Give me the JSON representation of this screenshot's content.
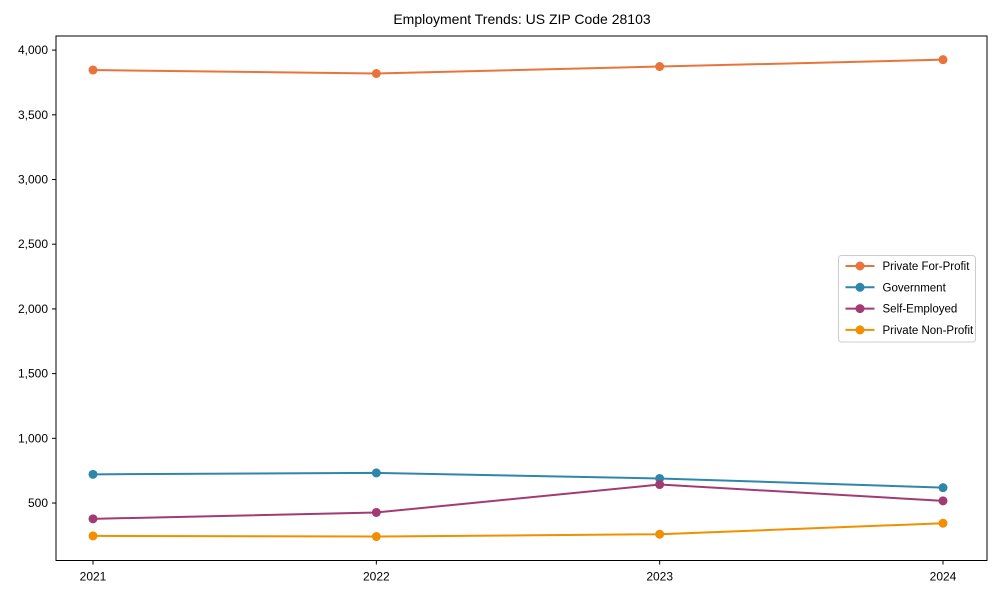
{
  "chart_data": {
    "type": "line",
    "title": "Employment Trends: US ZIP Code 28103",
    "xlabel": "",
    "ylabel": "",
    "categories": [
      "2021",
      "2022",
      "2023",
      "2024"
    ],
    "series": [
      {
        "name": "Private For-Profit",
        "color": "#E8743B",
        "values": [
          3846,
          3819,
          3873,
          3926
        ]
      },
      {
        "name": "Government",
        "color": "#2E86AB",
        "values": [
          722,
          733,
          690,
          619
        ]
      },
      {
        "name": "Self-Employed",
        "color": "#A23B72",
        "values": [
          378,
          427,
          643,
          517
        ]
      },
      {
        "name": "Private Non-Profit",
        "color": "#F18F01",
        "values": [
          246,
          241,
          259,
          344
        ]
      }
    ],
    "yticks": [
      500,
      1000,
      1500,
      2000,
      2500,
      3000,
      3500,
      4000
    ],
    "ytick_labels": [
      "500",
      "1,000",
      "1,500",
      "2,000",
      "2,500",
      "3,000",
      "3,500",
      "4,000"
    ],
    "ylim": [
      56,
      4109
    ],
    "grid": false,
    "legend_position": "center-right",
    "marker": "circle",
    "line_color_axis": "#000000",
    "legend_border_color": "#cccccc",
    "background_color": "#ffffff"
  }
}
